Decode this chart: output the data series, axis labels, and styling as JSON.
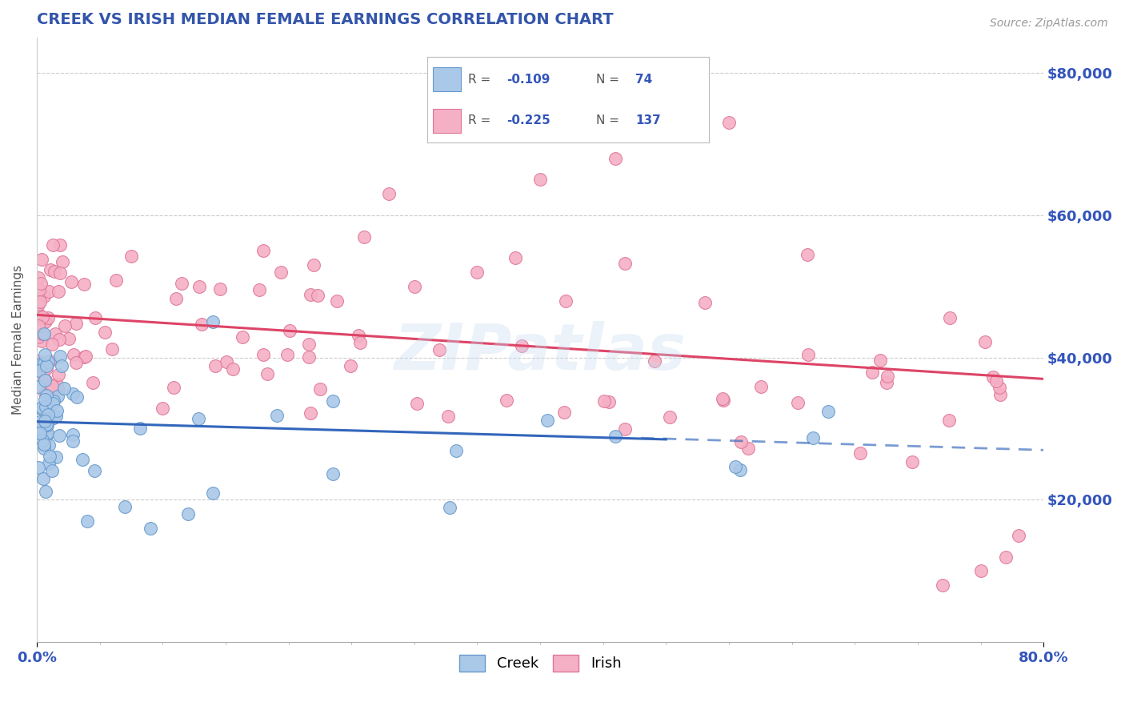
{
  "title": "CREEK VS IRISH MEDIAN FEMALE EARNINGS CORRELATION CHART",
  "source_text": "Source: ZipAtlas.com",
  "ylabel": "Median Female Earnings",
  "xlim": [
    0.0,
    0.8
  ],
  "ylim": [
    0,
    85000
  ],
  "creek_color": "#aac8e8",
  "creek_edge_color": "#6699cc",
  "irish_color": "#f5b0c5",
  "irish_edge_color": "#dd7799",
  "creek_line_color": "#3366bb",
  "irish_line_color": "#dd4466",
  "creek_R": -0.109,
  "creek_N": 74,
  "irish_R": -0.225,
  "irish_N": 137,
  "title_color": "#3355aa",
  "tick_label_color": "#3355bb",
  "grid_color": "#cccccc",
  "watermark": "ZIPatlas"
}
